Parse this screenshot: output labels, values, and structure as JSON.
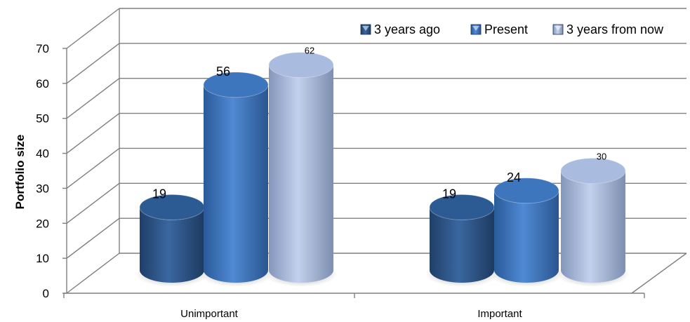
{
  "chart_data": {
    "type": "bar",
    "categories": [
      "Unimportant",
      "Important"
    ],
    "series": [
      {
        "name": "3 years ago",
        "values": [
          19,
          19
        ],
        "color": "#2e5a91"
      },
      {
        "name": "Present",
        "values": [
          56,
          24
        ],
        "color": "#3f78c0"
      },
      {
        "name": "3 years from now",
        "values": [
          62,
          30
        ],
        "color": "#a6b8de"
      }
    ],
    "ylabel": "Portfolio size",
    "ylim": [
      0,
      70
    ],
    "yticks": [
      0,
      10,
      20,
      30,
      40,
      50,
      60,
      70
    ],
    "grid": true,
    "legend_position": "top-right",
    "style": "3d-cylinder"
  }
}
